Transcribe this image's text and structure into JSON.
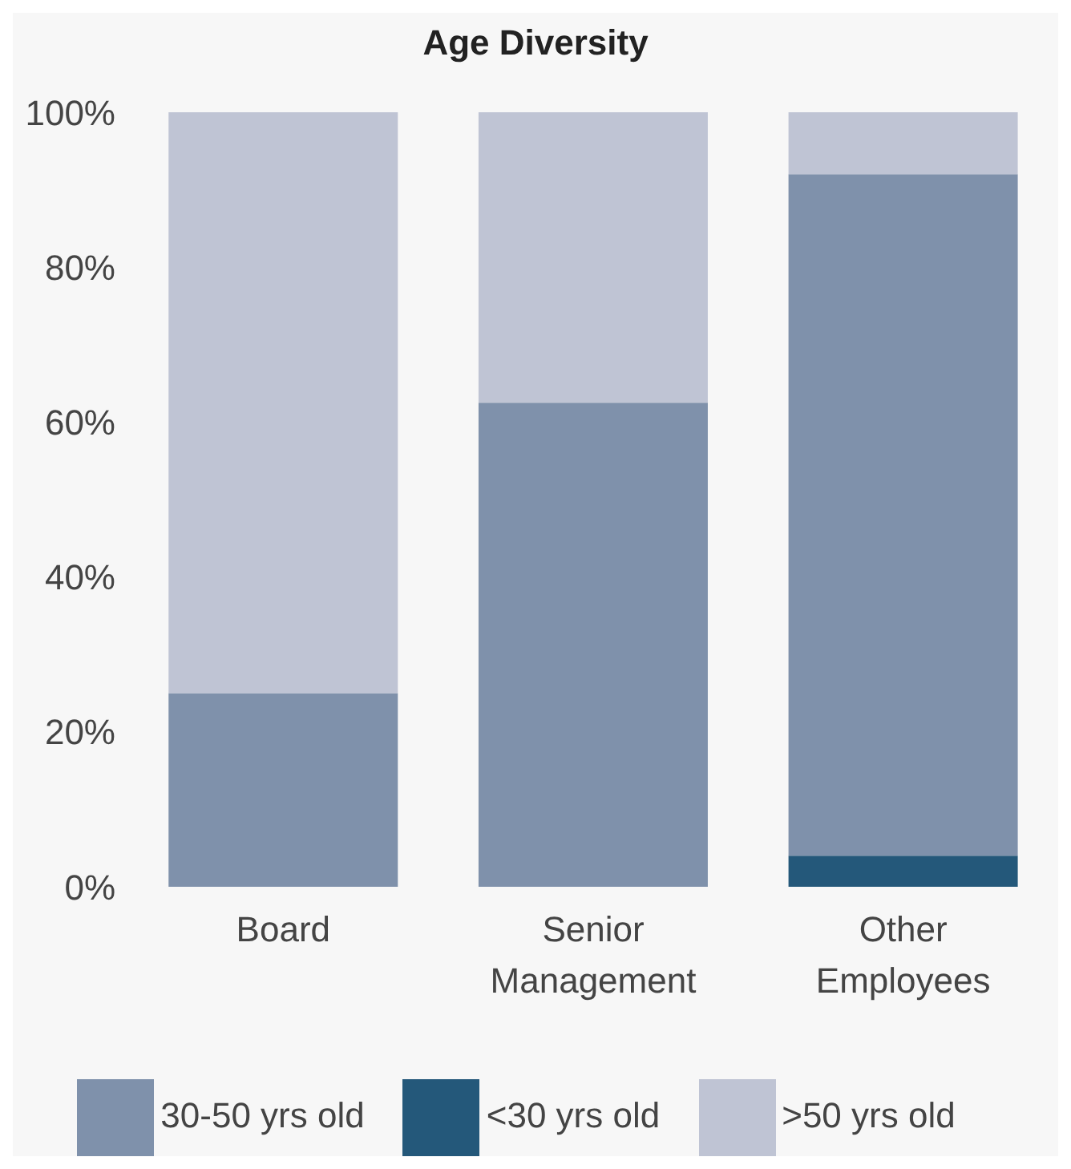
{
  "chart_data": {
    "type": "bar",
    "title": "Age Diversity",
    "categories": [
      "Board",
      "Senior Management",
      "Other Employees"
    ],
    "stacked": true,
    "series": [
      {
        "name": "<30 yrs old",
        "color": "#24587a",
        "values": [
          0,
          0,
          4
        ]
      },
      {
        "name": "30-50 yrs old",
        "color": "#7f91ab",
        "values": [
          25,
          62.5,
          88
        ]
      },
      {
        "name": ">50 yrs old",
        "color": "#bfc4d4",
        "values": [
          75,
          37.5,
          8
        ]
      }
    ],
    "ylim": [
      0,
      100
    ],
    "yticks": [
      {
        "value": 0,
        "label": "0%"
      },
      {
        "value": 20,
        "label": "20%"
      },
      {
        "value": 40,
        "label": "40%"
      },
      {
        "value": 60,
        "label": "60%"
      },
      {
        "value": 80,
        "label": "80%"
      },
      {
        "value": 100,
        "label": "100%"
      }
    ],
    "grid": false,
    "legend": "bottom"
  }
}
